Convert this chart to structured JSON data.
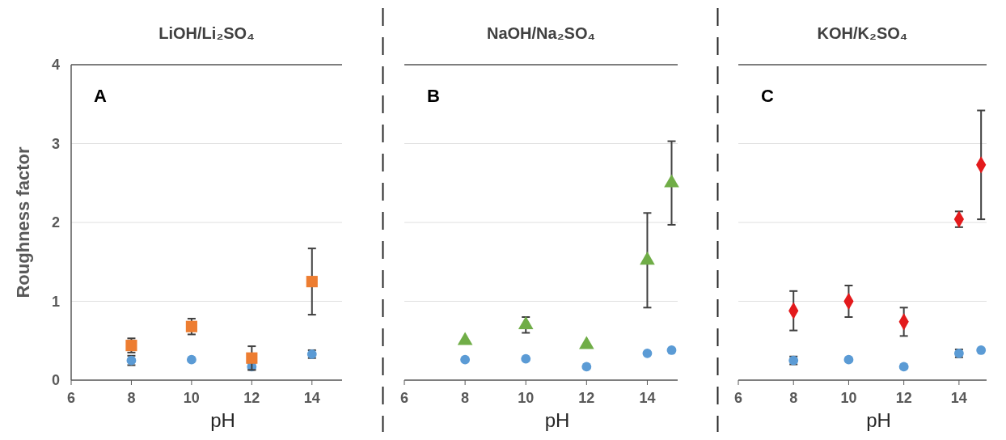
{
  "chart_data": [
    {
      "type": "scatter",
      "title": "LiOH/Li₂SO₄",
      "xlabel": "pH",
      "ylabel": "Roughness factor",
      "annotations": [
        "A"
      ],
      "xlim": [
        6,
        15
      ],
      "xticks": [
        6,
        8,
        10,
        12,
        14
      ],
      "ylim": [
        0,
        4
      ],
      "yticks": [
        0,
        1,
        2,
        3,
        4
      ],
      "grid": "y",
      "x": [
        8,
        10,
        12,
        14
      ],
      "series": [
        {
          "color": "#5b9bd5",
          "marker": "circle",
          "values": [
            0.25,
            0.26,
            0.17,
            0.33
          ],
          "errors": [
            0.06,
            null,
            0.04,
            0.05
          ]
        },
        {
          "color": "#ed7d31",
          "marker": "square",
          "values": [
            0.44,
            0.68,
            0.28,
            1.25
          ],
          "errors": [
            0.09,
            0.1,
            0.15,
            0.42
          ]
        }
      ]
    },
    {
      "type": "scatter",
      "title": "NaOH/Na₂SO₄",
      "xlabel": "pH",
      "annotations": [
        "B"
      ],
      "xlim": [
        6,
        15
      ],
      "xticks": [
        6,
        8,
        10,
        12,
        14
      ],
      "ylim": [
        0,
        4
      ],
      "yticks": [
        0,
        1,
        2,
        3,
        4
      ],
      "grid": "y",
      "tick_labels": "x",
      "x": [
        8,
        10,
        12,
        14,
        14.8
      ],
      "series": [
        {
          "color": "#5b9bd5",
          "marker": "circle",
          "values": [
            0.26,
            0.27,
            0.17,
            0.34,
            0.38
          ],
          "errors": [
            null,
            null,
            null,
            null,
            null
          ]
        },
        {
          "color": "#70ad47",
          "marker": "triangle",
          "values": [
            0.5,
            0.7,
            0.45,
            1.52,
            2.5
          ],
          "errors": [
            null,
            0.1,
            null,
            0.6,
            0.53
          ]
        }
      ]
    },
    {
      "type": "scatter",
      "title": "KOH/K₂SO₄",
      "xlabel": "pH",
      "annotations": [
        "C"
      ],
      "xlim": [
        6,
        15
      ],
      "xticks": [
        6,
        8,
        10,
        12,
        14
      ],
      "ylim": [
        0,
        4
      ],
      "yticks": [
        0,
        1,
        2,
        3,
        4
      ],
      "grid": "y",
      "tick_labels": "x",
      "x": [
        8,
        10,
        12,
        14,
        14.8
      ],
      "series": [
        {
          "color": "#5b9bd5",
          "marker": "circle",
          "values": [
            0.25,
            0.26,
            0.17,
            0.34,
            0.38
          ],
          "errors": [
            0.05,
            null,
            null,
            0.05,
            null
          ]
        },
        {
          "color": "#e31a1c",
          "marker": "diamond",
          "values": [
            0.88,
            1.0,
            0.74,
            2.04,
            2.73
          ],
          "errors": [
            0.25,
            0.2,
            0.18,
            0.1,
            0.69
          ]
        }
      ]
    }
  ]
}
